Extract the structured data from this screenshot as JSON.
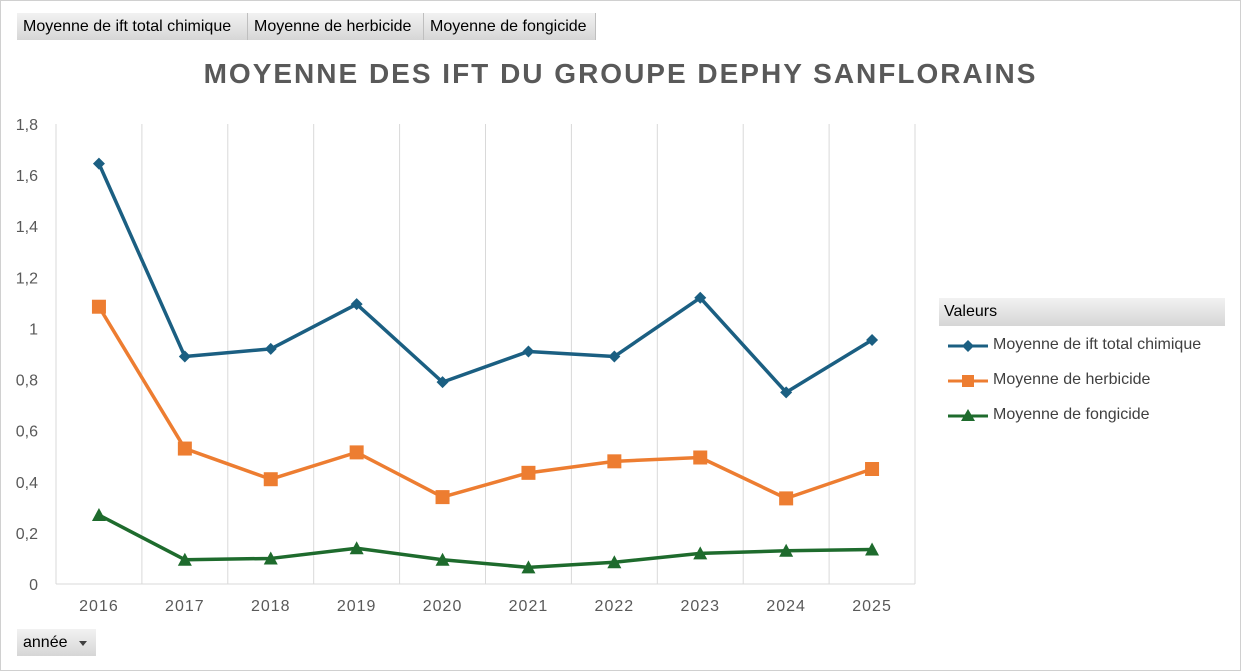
{
  "field_buttons": [
    "Moyenne de ift total chimique",
    "Moyenne de herbicide",
    "Moyenne de fongicide"
  ],
  "axis_field_button": "année",
  "legend_title": "Valeurs",
  "colors": {
    "ift_total": "#1b5f82",
    "herbicide": "#ed7d31",
    "fongicide": "#1e6b2d",
    "gridline": "#d9d9d9",
    "axis_text": "#595959"
  },
  "chart_data": {
    "type": "line",
    "title": "MOYENNE DES IFT DU GROUPE DEPHY SANFLORAINS",
    "xlabel": "",
    "ylabel": "",
    "categories": [
      "2016",
      "2017",
      "2018",
      "2019",
      "2020",
      "2021",
      "2022",
      "2023",
      "2024",
      "2025"
    ],
    "ylim": [
      0,
      1.8
    ],
    "yticks": [
      "0",
      "0,2",
      "0,4",
      "0,6",
      "0,8",
      "1",
      "1,2",
      "1,4",
      "1,6",
      "1,8"
    ],
    "vertical_gridlines": true,
    "legend_position": "right",
    "series": [
      {
        "name": "Moyenne de ift total chimique",
        "marker": "diamond",
        "color_key": "ift_total",
        "values": [
          1.645,
          0.89,
          0.92,
          1.095,
          0.79,
          0.91,
          0.89,
          1.12,
          0.75,
          0.955
        ]
      },
      {
        "name": "Moyenne de herbicide",
        "marker": "square",
        "color_key": "herbicide",
        "values": [
          1.085,
          0.53,
          0.41,
          0.515,
          0.34,
          0.435,
          0.48,
          0.495,
          0.335,
          0.45
        ]
      },
      {
        "name": "Moyenne de fongicide",
        "marker": "triangle",
        "color_key": "fongicide",
        "values": [
          0.27,
          0.095,
          0.1,
          0.14,
          0.095,
          0.065,
          0.085,
          0.12,
          0.13,
          0.135
        ]
      }
    ]
  }
}
